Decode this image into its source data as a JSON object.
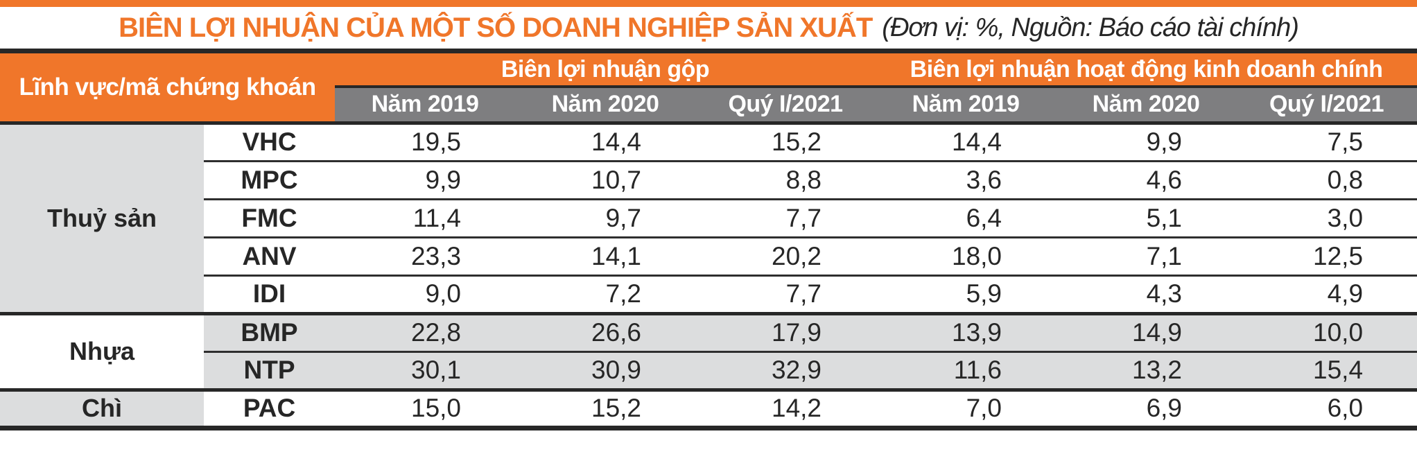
{
  "chart_data": {
    "type": "table",
    "title": "BIÊN LỢI NHUẬN CỦA MỘT SỐ DOANH NGHIỆP SẢN XUẤT",
    "unit_source_note": "(Đơn vị: %, Nguồn: Báo cáo tài chính)",
    "corner_header": "Lĩnh vực/mã chứng khoán",
    "column_groups": [
      "Biên lợi nhuận gộp",
      "Biên lợi nhuận hoạt động kinh doanh chính"
    ],
    "columns": [
      "Năm 2019",
      "Năm 2020",
      "Quý I/2021",
      "Năm 2019",
      "Năm 2020",
      "Quý I/2021"
    ],
    "sectors": [
      {
        "sector": "Thuỷ sản",
        "rows": [
          {
            "ticker": "VHC",
            "values": [
              "19,5",
              "14,4",
              "15,2",
              "14,4",
              "9,9",
              "7,5"
            ]
          },
          {
            "ticker": "MPC",
            "values": [
              "9,9",
              "10,7",
              "8,8",
              "3,6",
              "4,6",
              "0,8"
            ]
          },
          {
            "ticker": "FMC",
            "values": [
              "11,4",
              "9,7",
              "7,7",
              "6,4",
              "5,1",
              "3,0"
            ]
          },
          {
            "ticker": "ANV",
            "values": [
              "23,3",
              "14,1",
              "20,2",
              "18,0",
              "7,1",
              "12,5"
            ]
          },
          {
            "ticker": "IDI",
            "values": [
              "9,0",
              "7,2",
              "7,7",
              "5,9",
              "4,3",
              "4,9"
            ]
          }
        ]
      },
      {
        "sector": "Nhựa",
        "rows": [
          {
            "ticker": "BMP",
            "values": [
              "22,8",
              "26,6",
              "17,9",
              "13,9",
              "14,9",
              "10,0"
            ]
          },
          {
            "ticker": "NTP",
            "values": [
              "30,1",
              "30,9",
              "32,9",
              "11,6",
              "13,2",
              "15,4"
            ]
          }
        ]
      },
      {
        "sector": "Chì",
        "rows": [
          {
            "ticker": "PAC",
            "values": [
              "15,0",
              "15,2",
              "14,2",
              "7,0",
              "6,9",
              "6,0"
            ]
          }
        ]
      }
    ]
  },
  "colors": {
    "accent_orange": "#F0762A",
    "header_gray": "#7E7E80",
    "row_shade": "#DCDDDE",
    "line_dark": "#272727",
    "header_text": "#FFFFFF",
    "body_text": "#262626"
  }
}
